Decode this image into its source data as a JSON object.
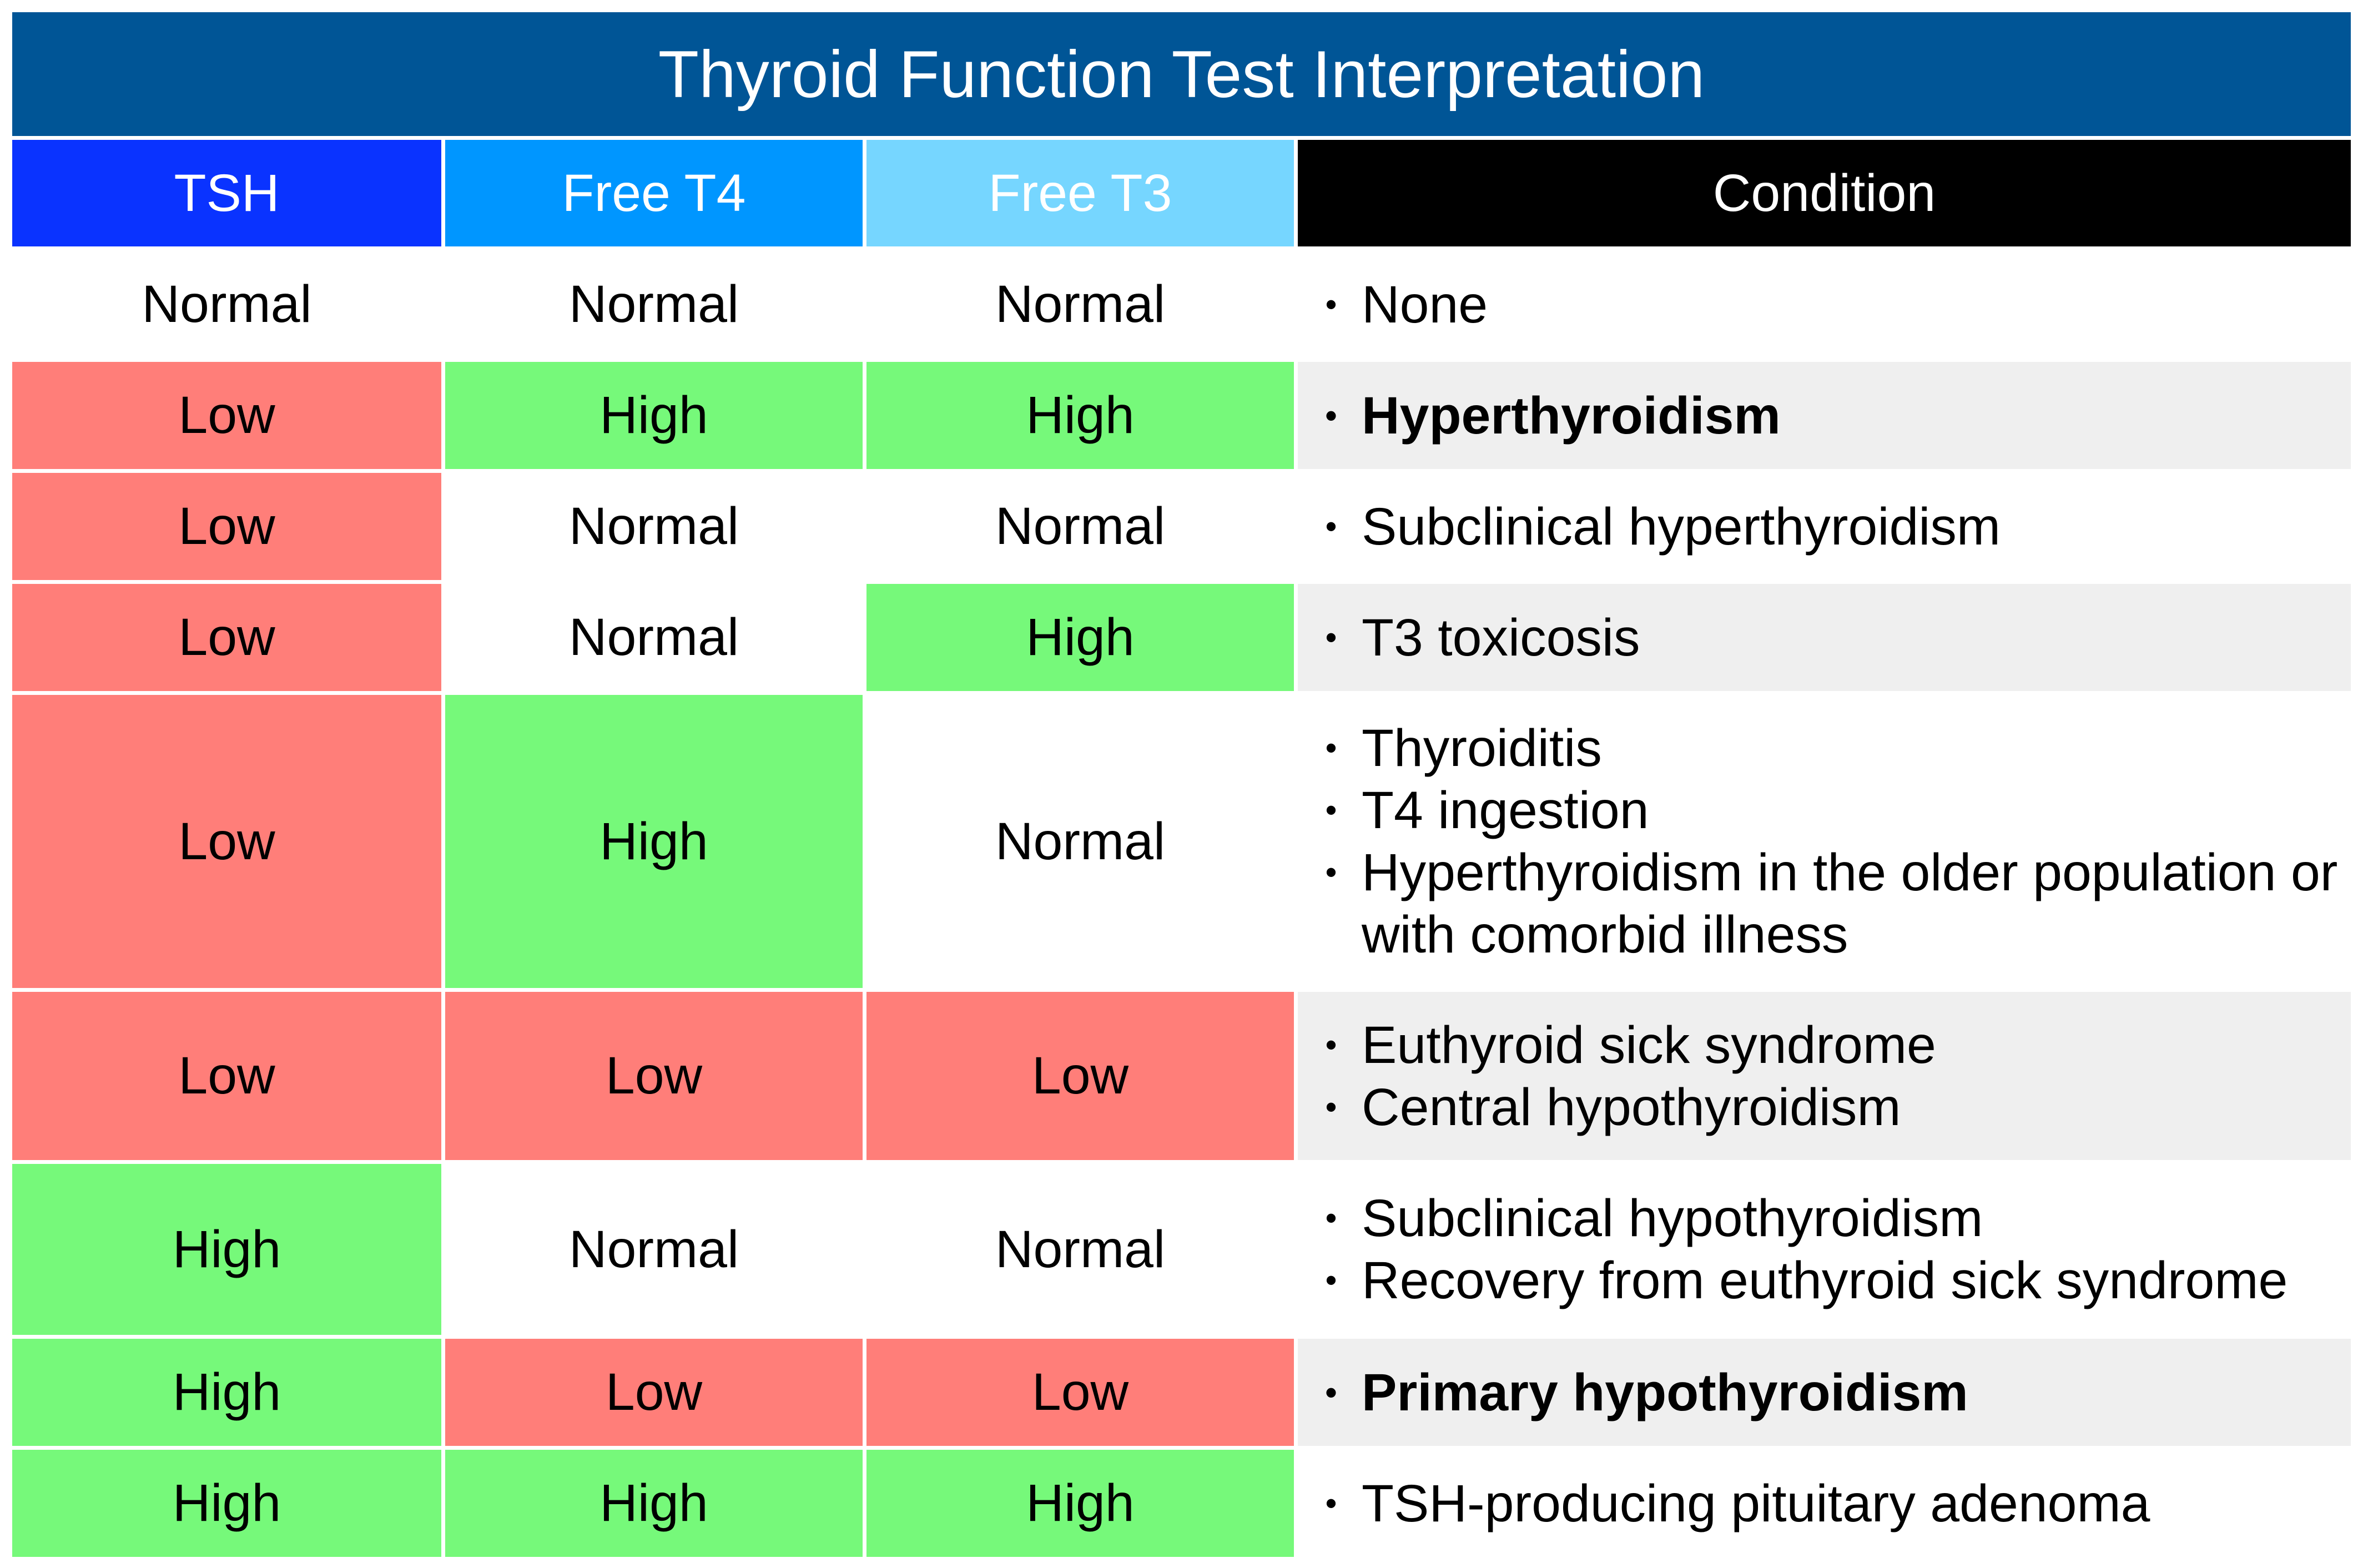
{
  "title": "Thyroid Function Test Interpretation",
  "headers": {
    "tsh": "TSH",
    "free_t4": "Free T4",
    "free_t3": "Free T3",
    "condition": "Condition"
  },
  "colors": {
    "title_bg": "#005596",
    "tsh_header": "#0a33ff",
    "free_t4_header": "#0096ff",
    "free_t3_header": "#76d6ff",
    "condition_header": "#000000",
    "low": "#ff7e79",
    "high": "#76f97a",
    "shaded_row": "#efefef"
  },
  "rows": [
    {
      "tsh": "Normal",
      "free_t4": "Normal",
      "free_t3": "Normal",
      "conditions": [
        "None"
      ],
      "bold": false
    },
    {
      "tsh": "Low",
      "free_t4": "High",
      "free_t3": "High",
      "conditions": [
        "Hyperthyroidism"
      ],
      "bold": true
    },
    {
      "tsh": "Low",
      "free_t4": "Normal",
      "free_t3": "Normal",
      "conditions": [
        "Subclinical hyperthyroidism"
      ],
      "bold": false
    },
    {
      "tsh": "Low",
      "free_t4": "Normal",
      "free_t3": "High",
      "conditions": [
        "T3 toxicosis"
      ],
      "bold": false
    },
    {
      "tsh": "Low",
      "free_t4": "High",
      "free_t3": "Normal",
      "conditions": [
        "Thyroiditis",
        "T4 ingestion",
        "Hyperthyroidism in the older population or with comorbid illness"
      ],
      "bold": false
    },
    {
      "tsh": "Low",
      "free_t4": "Low",
      "free_t3": "Low",
      "conditions": [
        "Euthyroid sick syndrome",
        "Central hypothyroidism"
      ],
      "bold": false
    },
    {
      "tsh": "High",
      "free_t4": "Normal",
      "free_t3": "Normal",
      "conditions": [
        "Subclinical hypothyroidism",
        "Recovery from euthyroid sick syndrome"
      ],
      "bold": false
    },
    {
      "tsh": "High",
      "free_t4": "Low",
      "free_t3": "Low",
      "conditions": [
        "Primary hypothyroidism"
      ],
      "bold": true
    },
    {
      "tsh": "High",
      "free_t4": "High",
      "free_t3": "High",
      "conditions": [
        "TSH-producing pituitary adenoma"
      ],
      "bold": false
    }
  ]
}
